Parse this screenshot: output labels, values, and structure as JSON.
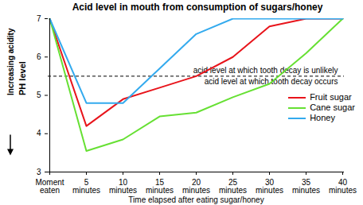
{
  "chart_data": {
    "type": "line",
    "title": "Acid level in mouth from consumption of sugars/honey",
    "x_label": "Time elapsed after eating sugar/honey",
    "y_label": "PH level",
    "y_annotation": "Increasing acidity",
    "categories": [
      "Moment eaten",
      "5 minutes",
      "10 minutes",
      "15 minutes",
      "20 minutes",
      "25 minutes",
      "30 minutes",
      "35 minutes",
      "40 minutes"
    ],
    "series": [
      {
        "name": "Fruit sugar",
        "color": "#e8141b",
        "values": [
          7,
          4.2,
          4.9,
          5.2,
          5.5,
          6.0,
          6.8,
          7,
          7
        ]
      },
      {
        "name": "Cane sugar",
        "color": "#66e033",
        "values": [
          7,
          3.55,
          3.85,
          4.45,
          4.55,
          4.95,
          5.3,
          6.1,
          7
        ]
      },
      {
        "name": "Honey",
        "color": "#33aaee",
        "values": [
          7,
          4.8,
          4.8,
          5.7,
          6.6,
          7,
          7,
          7,
          7
        ]
      }
    ],
    "ylim": [
      3,
      7
    ],
    "yticks": [
      3,
      4,
      5,
      6,
      7
    ],
    "reference_line": {
      "value": 5.5,
      "line_style": "dashed",
      "label_above": "acid level at which tooth decay is unlikely",
      "label_below": "acid level at which tooth decay occurs"
    },
    "grid": false,
    "legend": "right"
  }
}
